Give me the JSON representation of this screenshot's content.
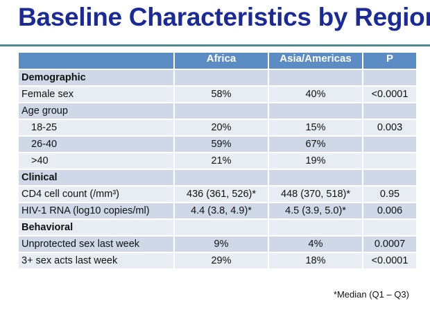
{
  "title": "Baseline Characteristics by Region",
  "columns": [
    "",
    "Africa",
    "Asia/Americas",
    "P"
  ],
  "rows": [
    {
      "label": "Demographic",
      "section": true,
      "africa": "",
      "asia": "",
      "p": ""
    },
    {
      "label": "Female sex",
      "africa": "58%",
      "asia": "40%",
      "p": "<0.0001"
    },
    {
      "label": "Age group",
      "africa": "",
      "asia": "",
      "p": ""
    },
    {
      "label": "18-25",
      "indent": true,
      "africa": "20%",
      "asia": "15%",
      "p": "0.003"
    },
    {
      "label": "26-40",
      "indent": true,
      "africa": "59%",
      "asia": "67%",
      "p": ""
    },
    {
      "label": ">40",
      "indent": true,
      "africa": "21%",
      "asia": "19%",
      "p": ""
    },
    {
      "label": "Clinical",
      "section": true,
      "africa": "",
      "asia": "",
      "p": ""
    },
    {
      "label": "CD4 cell count (/mm³)",
      "africa": "436 (361, 526)*",
      "asia": "448 (370, 518)*",
      "p": "0.95"
    },
    {
      "label": "HIV-1 RNA (log10 copies/ml)",
      "africa": "4.4 (3.8, 4.9)*",
      "asia": "4.5 (3.9, 5.0)*",
      "p": "0.006"
    },
    {
      "label": "Behavioral",
      "section": true,
      "africa": "",
      "asia": "",
      "p": ""
    },
    {
      "label": "Unprotected sex last week",
      "africa": "9%",
      "asia": "4%",
      "p": "0.0007"
    },
    {
      "label": "3+ sex acts last week",
      "africa": "29%",
      "asia": "18%",
      "p": "<0.0001"
    }
  ],
  "footnote": "*Median (Q1 – Q3)"
}
